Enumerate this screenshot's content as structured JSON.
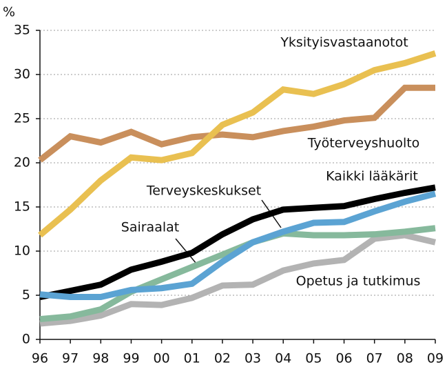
{
  "chart_data": {
    "type": "line",
    "y_label": "%",
    "categories": [
      "96",
      "97",
      "98",
      "99",
      "00",
      "01",
      "02",
      "03",
      "04",
      "05",
      "06",
      "07",
      "08",
      "09"
    ],
    "series": [
      {
        "name": "Opetus ja tutkimus",
        "color": "#b3b3b3",
        "values": [
          1.8,
          2.1,
          2.7,
          4.0,
          3.9,
          4.7,
          6.1,
          6.2,
          7.8,
          8.6,
          9.0,
          11.4,
          11.8,
          11.0
        ]
      },
      {
        "name": "Sairaalat",
        "color": "#86b99c",
        "values": [
          2.3,
          2.6,
          3.4,
          5.4,
          6.8,
          8.2,
          9.6,
          11.0,
          12.0,
          11.8,
          11.8,
          11.9,
          12.2,
          12.6
        ]
      },
      {
        "name": "Kaikki lääkärit",
        "color": "#000000",
        "values": [
          4.8,
          5.5,
          6.2,
          7.9,
          8.8,
          9.8,
          11.9,
          13.6,
          14.7,
          14.9,
          15.1,
          15.9,
          16.6,
          17.2
        ]
      },
      {
        "name": "Terveyskeskukset",
        "color": "#5ba3d3",
        "values": [
          5.1,
          4.8,
          4.8,
          5.6,
          5.8,
          6.3,
          8.8,
          11.0,
          12.2,
          13.2,
          13.3,
          14.5,
          15.6,
          16.5
        ]
      },
      {
        "name": "Työterveyshuolto",
        "color": "#c98f5c",
        "values": [
          20.3,
          23.0,
          22.3,
          23.5,
          22.1,
          22.9,
          23.2,
          22.9,
          23.6,
          24.1,
          24.8,
          25.1,
          28.5,
          28.5
        ]
      },
      {
        "name": "Yksityisvastaanotot",
        "color": "#e9c051",
        "values": [
          11.8,
          14.7,
          18.0,
          20.6,
          20.3,
          21.1,
          24.3,
          25.7,
          28.3,
          27.8,
          28.9,
          30.5,
          31.3,
          32.4
        ]
      }
    ],
    "ylim": [
      0,
      35
    ],
    "yticks": [
      0,
      5,
      10,
      15,
      20,
      25,
      30,
      35
    ],
    "grid": true
  }
}
